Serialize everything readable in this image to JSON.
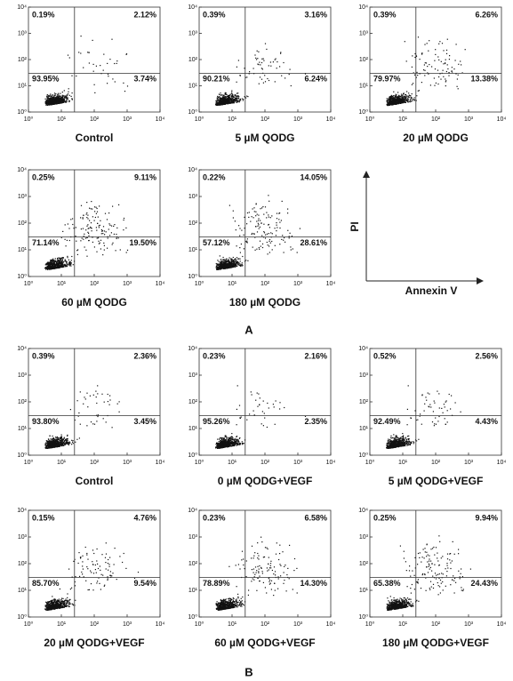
{
  "panels": [
    {
      "caption": "Control",
      "quadrants": {
        "ul": "0.19%",
        "ur": "2.12%",
        "ll": "93.95%",
        "lr": "3.74%"
      }
    },
    {
      "caption": "5 µM QODG",
      "quadrants": {
        "ul": "0.39%",
        "ur": "3.16%",
        "ll": "90.21%",
        "lr": "6.24%"
      }
    },
    {
      "caption": "20 µM QODG",
      "quadrants": {
        "ul": "0.39%",
        "ur": "6.26%",
        "ll": "79.97%",
        "lr": "13.38%"
      }
    },
    {
      "caption": "60 µM QODG",
      "quadrants": {
        "ul": "0.25%",
        "ur": "9.11%",
        "ll": "71.14%",
        "lr": "19.50%"
      }
    },
    {
      "caption": "180 µM QODG",
      "quadrants": {
        "ul": "0.22%",
        "ur": "14.05%",
        "ll": "57.12%",
        "lr": "28.61%"
      }
    },
    {
      "caption": "Control",
      "quadrants": {
        "ul": "0.39%",
        "ur": "2.36%",
        "ll": "93.80%",
        "lr": "3.45%"
      }
    },
    {
      "caption": "0 µM QODG+VEGF",
      "quadrants": {
        "ul": "0.23%",
        "ur": "2.16%",
        "ll": "95.26%",
        "lr": "2.35%"
      }
    },
    {
      "caption": "5 µM QODG+VEGF",
      "quadrants": {
        "ul": "0.52%",
        "ur": "2.56%",
        "ll": "92.49%",
        "lr": "4.43%"
      }
    },
    {
      "caption": "20 µM QODG+VEGF",
      "quadrants": {
        "ul": "0.15%",
        "ur": "4.76%",
        "ll": "85.70%",
        "lr": "9.54%"
      }
    },
    {
      "caption": "60 µM QODG+VEGF",
      "quadrants": {
        "ul": "0.23%",
        "ur": "6.58%",
        "ll": "78.89%",
        "lr": "14.30%"
      }
    },
    {
      "caption": "180 µM QODG+VEGF",
      "quadrants": {
        "ul": "0.25%",
        "ur": "9.94%",
        "ll": "65.38%",
        "lr": "24.43%"
      }
    }
  ],
  "axis_ticks": [
    "10⁰",
    "10¹",
    "10²",
    "10³",
    "10⁴"
  ],
  "axis_labels": {
    "y": "PI",
    "x": "Annexin V"
  },
  "section_labels": [
    "A",
    "B"
  ]
}
